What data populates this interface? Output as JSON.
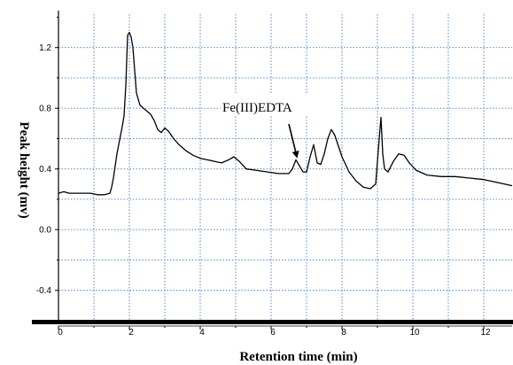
{
  "chart_data": {
    "type": "line",
    "title": "",
    "xlabel": "Retention time (min)",
    "ylabel": "Peak height (mv)",
    "xlim": [
      0,
      12.8
    ],
    "ylim": [
      -0.6,
      1.42
    ],
    "grid": true,
    "x_ticks": [
      0,
      2,
      4,
      6,
      8,
      10,
      12
    ],
    "x_tick_labels": [
      "0",
      "2",
      "4",
      "6",
      "8",
      "10",
      "12"
    ],
    "y_ticks": [
      -0.4,
      0.0,
      0.4,
      0.8,
      1.2
    ],
    "y_tick_labels": [
      "-0.4",
      "0.0",
      "0.4",
      "0.8",
      "1.2"
    ],
    "series": [
      {
        "name": "",
        "color": "#000000",
        "x": [
          0,
          0.15,
          0.3,
          0.5,
          0.7,
          0.9,
          1.1,
          1.3,
          1.45,
          1.5,
          1.55,
          1.6,
          1.65,
          1.7,
          1.75,
          1.8,
          1.85,
          1.9,
          1.95,
          2.0,
          2.05,
          2.1,
          2.15,
          2.2,
          2.3,
          2.4,
          2.5,
          2.6,
          2.7,
          2.8,
          2.9,
          3.0,
          3.1,
          3.25,
          3.4,
          3.6,
          3.8,
          4.0,
          4.2,
          4.4,
          4.6,
          4.8,
          4.95,
          5.1,
          5.3,
          5.6,
          5.9,
          6.2,
          6.5,
          6.6,
          6.7,
          6.8,
          6.9,
          7.0,
          7.1,
          7.2,
          7.3,
          7.4,
          7.5,
          7.6,
          7.7,
          7.8,
          7.9,
          8.0,
          8.2,
          8.4,
          8.6,
          8.8,
          8.95,
          9.05,
          9.1,
          9.15,
          9.2,
          9.3,
          9.45,
          9.6,
          9.75,
          9.9,
          10.1,
          10.4,
          10.8,
          11.2,
          11.6,
          12.0,
          12.4,
          12.8
        ],
        "y": [
          0.24,
          0.25,
          0.24,
          0.24,
          0.24,
          0.24,
          0.23,
          0.23,
          0.24,
          0.28,
          0.34,
          0.42,
          0.5,
          0.56,
          0.62,
          0.68,
          0.75,
          0.95,
          1.28,
          1.3,
          1.27,
          1.2,
          1.05,
          0.9,
          0.82,
          0.8,
          0.78,
          0.76,
          0.72,
          0.66,
          0.64,
          0.67,
          0.65,
          0.6,
          0.56,
          0.52,
          0.49,
          0.47,
          0.46,
          0.45,
          0.44,
          0.46,
          0.48,
          0.45,
          0.4,
          0.39,
          0.38,
          0.37,
          0.37,
          0.4,
          0.46,
          0.42,
          0.38,
          0.38,
          0.48,
          0.56,
          0.44,
          0.43,
          0.5,
          0.6,
          0.66,
          0.62,
          0.55,
          0.48,
          0.38,
          0.32,
          0.28,
          0.27,
          0.3,
          0.6,
          0.74,
          0.5,
          0.4,
          0.38,
          0.45,
          0.5,
          0.49,
          0.44,
          0.39,
          0.36,
          0.35,
          0.35,
          0.34,
          0.33,
          0.31,
          0.29
        ]
      }
    ],
    "annotation": {
      "text": "Fe(III)EDTA",
      "arrow_x": 6.7,
      "arrow_y": 0.47
    }
  }
}
